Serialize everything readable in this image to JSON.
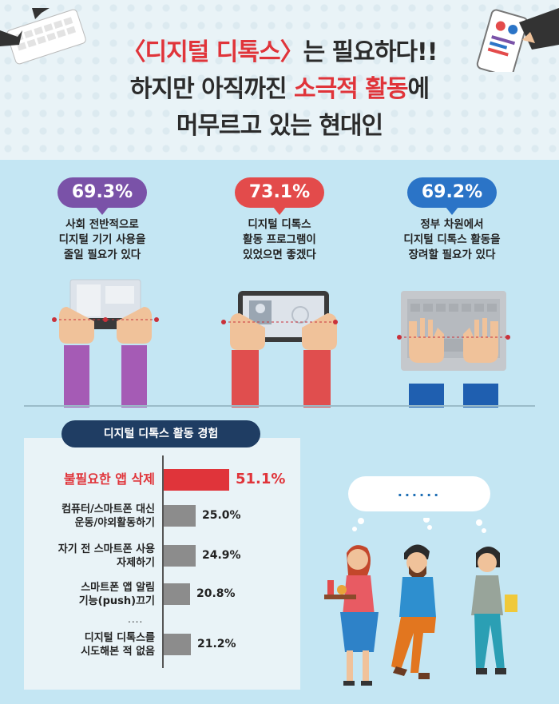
{
  "header": {
    "line1_part1": "〈디지털 디톡스〉",
    "line1_part2": "는 필요하다!!",
    "line2_part1": "하지만 아직까진 ",
    "line2_part2": "소극적 활동",
    "line2_part3": "에",
    "line3": "머무르고 있는 현대인",
    "accent_color": "#e0343a"
  },
  "stats": [
    {
      "value": "69.3%",
      "text": "사회 전반적으로\n디지털 기기 사용을\n줄일 필요가 있다",
      "color": "#7a52a8",
      "icon": "hands-holding-tablet-icon"
    },
    {
      "value": "73.1%",
      "text": "디지털 디톡스\n활동 프로그램이\n있었으면 좋겠다",
      "color": "#e34b4b",
      "icon": "hands-holding-tablet-icon"
    },
    {
      "value": "69.2%",
      "text": "정부 차원에서\n디지털 디톡스 활동을\n장려할 필요가 있다",
      "color": "#2b74c7",
      "icon": "hands-typing-laptop-icon"
    }
  ],
  "experience": {
    "title": "디지털 디톡스 활동 경험",
    "more": "....",
    "bubble_text": "......",
    "highlight_color": "#e0343a",
    "bar_color": "#8c8c8c"
  },
  "chart_data": {
    "type": "bar",
    "orientation": "horizontal",
    "title": "디지털 디톡스 활동 경험",
    "categories": [
      "불필요한 앱 삭제",
      "컴퓨터/스마트폰 대신\n운동/야외활동하기",
      "자기 전 스마트폰 사용\n자제하기",
      "스마트폰 앱 알림\n기능(push)끄기",
      "디지털 디톡스를\n시도해본 적 없음"
    ],
    "values": [
      51.1,
      25.0,
      24.9,
      20.8,
      21.2
    ],
    "labels": [
      "51.1%",
      "25.0%",
      "24.9%",
      "20.8%",
      "21.2%"
    ],
    "highlight_index": 0
  }
}
